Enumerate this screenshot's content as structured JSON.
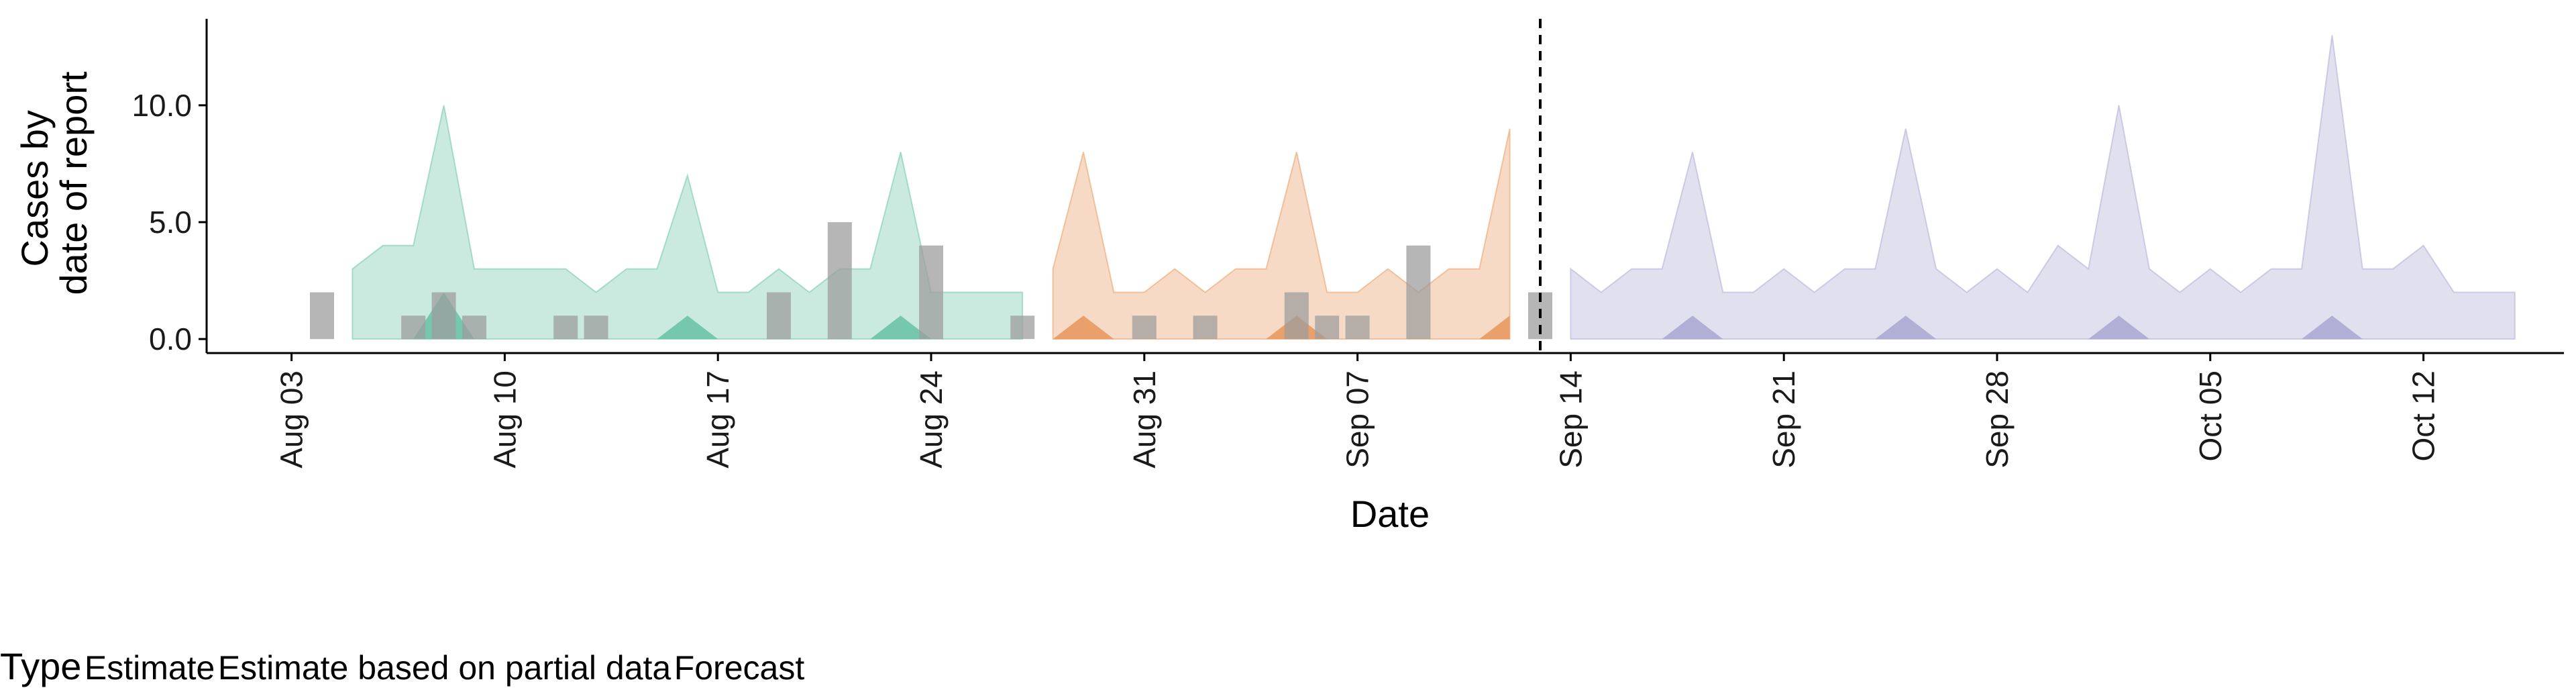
{
  "chart_data": {
    "type": "area",
    "xlabel": "Date",
    "ylabel_lines": [
      "Cases by",
      "date of report"
    ],
    "x_start_date": "2020-08-04",
    "ylim": [
      -0.6,
      13.7
    ],
    "y_ticks": [
      0,
      5,
      10
    ],
    "y_tick_labels": [
      "0.0",
      "5.0",
      "10.0"
    ],
    "x_tick_labels": [
      "Aug 03",
      "Aug 10",
      "Aug 17",
      "Aug 24",
      "Aug 31",
      "Sep 07",
      "Sep 14",
      "Sep 21",
      "Sep 28",
      "Oct 05",
      "Oct 12"
    ],
    "x_tick_days": [
      -1,
      6,
      13,
      20,
      27,
      34,
      41,
      48,
      55,
      62,
      69
    ],
    "vline_day": 40,
    "grid": false,
    "legend": {
      "title": "Type",
      "position": "bottom",
      "items": [
        {
          "label": "Estimate",
          "fill": "#66c2a5",
          "stroke": "#1b9e77"
        },
        {
          "label": "Estimate based on partial data",
          "fill": "#e8955a",
          "stroke": "#d95f02"
        },
        {
          "label": "Forecast",
          "fill": "#a9a6d2",
          "stroke": "#7570b3"
        }
      ]
    },
    "series": [
      {
        "name": "Estimate",
        "color": "#66c2a5",
        "days": [
          1,
          2,
          3,
          4,
          5,
          6,
          7,
          8,
          9,
          10,
          11,
          12,
          13,
          14,
          15,
          16,
          17,
          18,
          19,
          20,
          21,
          22,
          23
        ],
        "upper": [
          3,
          4,
          4,
          10,
          3,
          3,
          3,
          3,
          2,
          3,
          3,
          7,
          2,
          2,
          3,
          2,
          3,
          3,
          8,
          2,
          2,
          2,
          2
        ],
        "lower": [
          0,
          0,
          0,
          2,
          0,
          0,
          0,
          0,
          0,
          0,
          0,
          1,
          0,
          0,
          0,
          0,
          0,
          0,
          1,
          0,
          0,
          0,
          0
        ]
      },
      {
        "name": "Estimate based on partial data",
        "color": "#e8955a",
        "days": [
          24,
          25,
          26,
          27,
          28,
          29,
          30,
          31,
          32,
          33,
          34,
          35,
          36,
          37,
          38,
          39
        ],
        "upper": [
          3,
          8,
          2,
          2,
          3,
          2,
          3,
          3,
          8,
          2,
          2,
          3,
          2,
          3,
          3,
          9
        ],
        "lower": [
          0,
          1,
          0,
          0,
          0,
          0,
          0,
          0,
          1,
          0,
          0,
          0,
          0,
          0,
          0,
          1
        ]
      },
      {
        "name": "Forecast",
        "color": "#a9a6d2",
        "days": [
          41,
          42,
          43,
          44,
          45,
          46,
          47,
          48,
          49,
          50,
          51,
          52,
          53,
          54,
          55,
          56,
          57,
          58,
          59,
          60,
          61,
          62,
          63,
          64,
          65,
          66,
          67,
          68,
          69,
          70,
          71,
          72
        ],
        "upper": [
          3,
          2,
          3,
          3,
          8,
          2,
          2,
          3,
          2,
          3,
          3,
          9,
          3,
          2,
          3,
          2,
          4,
          3,
          10,
          3,
          2,
          3,
          2,
          3,
          3,
          13,
          3,
          3,
          4,
          2,
          2,
          2
        ],
        "lower": [
          0,
          0,
          0,
          0,
          1,
          0,
          0,
          0,
          0,
          0,
          0,
          1,
          0,
          0,
          0,
          0,
          0,
          0,
          1,
          0,
          0,
          0,
          0,
          0,
          0,
          1,
          0,
          0,
          0,
          0,
          0,
          0
        ]
      }
    ],
    "reported_cases": {
      "color": "#9e9e9e",
      "days": [
        0,
        3,
        4,
        5,
        8,
        9,
        15,
        17,
        20,
        23,
        27,
        29,
        32,
        33,
        34,
        36,
        40
      ],
      "values": [
        2,
        1,
        2,
        1,
        1,
        1,
        2,
        5,
        4,
        1,
        1,
        1,
        2,
        1,
        1,
        4,
        2
      ]
    }
  }
}
